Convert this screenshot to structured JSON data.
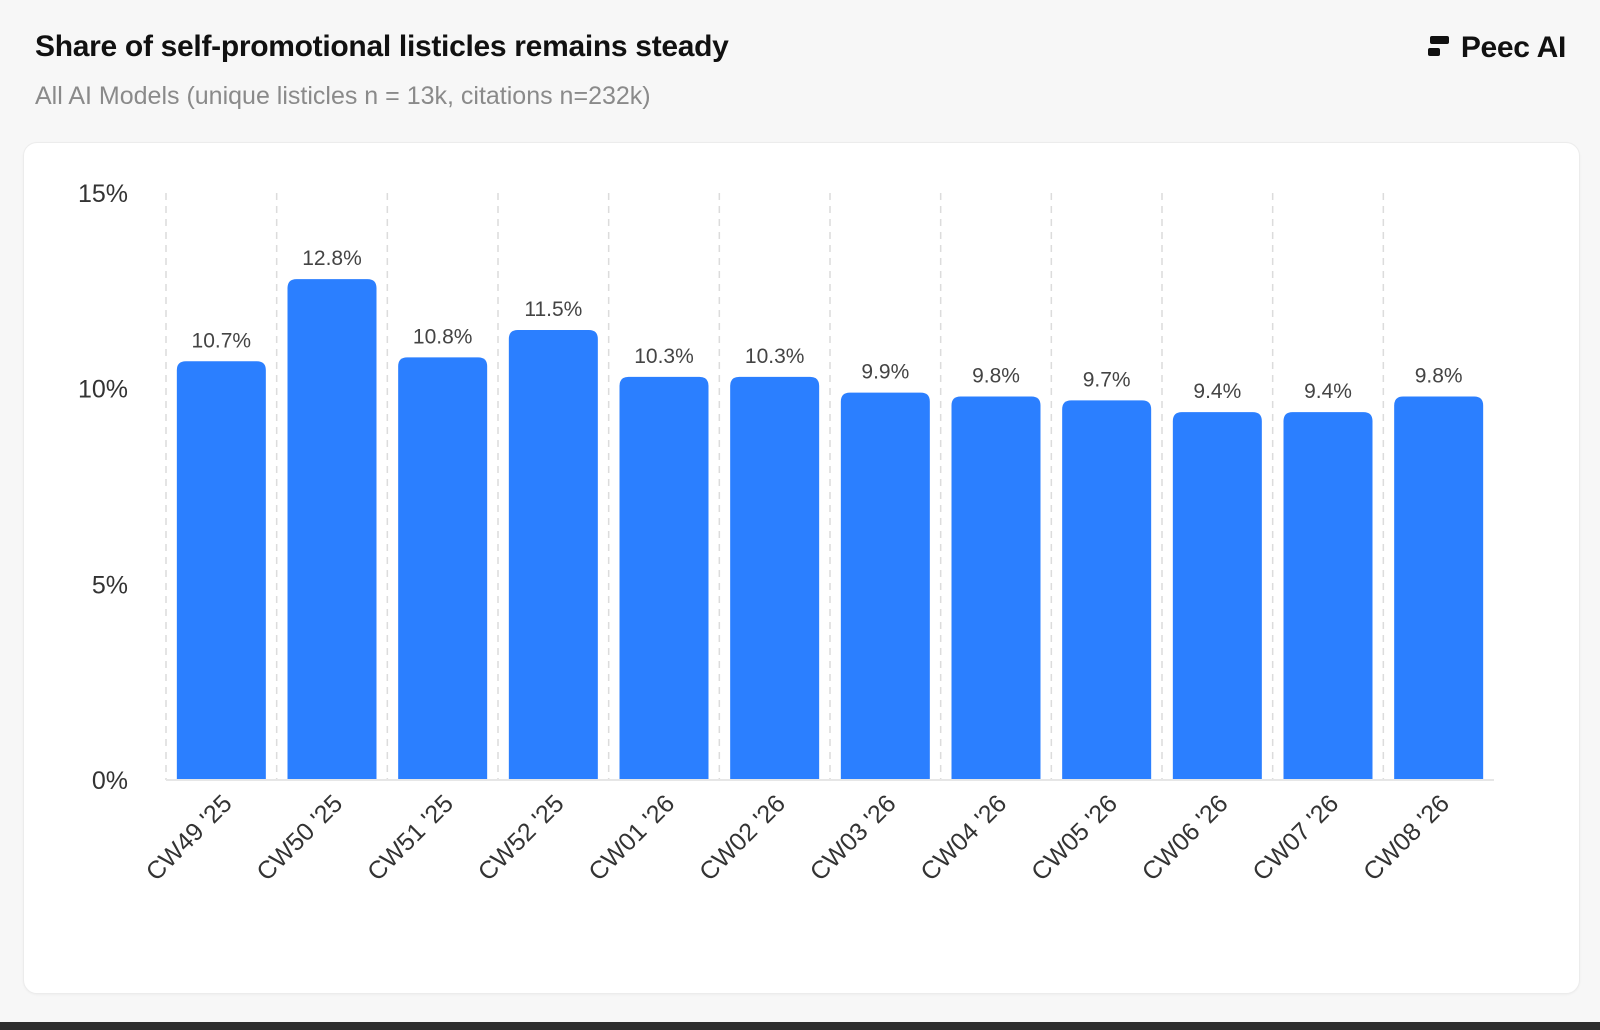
{
  "header": {
    "title": "Share of self-promotional listicles remains steady",
    "subtitle": "All AI Models (unique listicles n = 13k, citations n=232k)"
  },
  "brand": {
    "name": "Peec AI",
    "logo_icon": "peec-logo-icon"
  },
  "colors": {
    "bar": "#2b7fff",
    "grid": "#dcdcdc",
    "axis": "#e6e6e6",
    "tick_text": "#333333",
    "value_text": "#444444"
  },
  "chart_data": {
    "type": "bar",
    "categories": [
      "CW49 '25",
      "CW50 '25",
      "CW51 '25",
      "CW52 '25",
      "CW01 '26",
      "CW02 '26",
      "CW03 '26",
      "CW04 '26",
      "CW05 '26",
      "CW06 '26",
      "CW07 '26",
      "CW08 '26"
    ],
    "values": [
      10.7,
      12.8,
      10.8,
      11.5,
      10.3,
      10.3,
      9.9,
      9.8,
      9.7,
      9.4,
      9.4,
      9.8
    ],
    "value_labels": [
      "10.7%",
      "12.8%",
      "10.8%",
      "11.5%",
      "10.3%",
      "10.3%",
      "9.9%",
      "9.8%",
      "9.7%",
      "9.4%",
      "9.4%",
      "9.8%"
    ],
    "y_ticks": [
      0,
      5,
      10,
      15
    ],
    "y_tick_labels": [
      "0%",
      "5%",
      "10%",
      "15%"
    ],
    "ylim": [
      0,
      15
    ],
    "title": "Share of self-promotional listicles remains steady",
    "xlabel": "",
    "ylabel": "",
    "grid": "vertical dashed",
    "legend": "none"
  }
}
